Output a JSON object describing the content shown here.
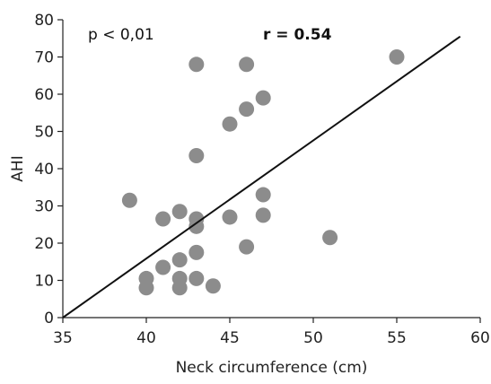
{
  "chart_data": {
    "type": "scatter",
    "xlabel": "Neck circumference (cm)",
    "ylabel": "AHI",
    "xlim": [
      35,
      60
    ],
    "ylim": [
      0,
      80
    ],
    "x_ticks": [
      35,
      40,
      45,
      50,
      55,
      60
    ],
    "y_ticks": [
      0,
      10,
      20,
      30,
      40,
      50,
      60,
      70,
      80
    ],
    "grid": false,
    "annotations": [
      {
        "text": "p < 0,01"
      },
      {
        "text": "r = 0.54"
      }
    ],
    "point_color": "#8c8c8c",
    "trend_color": "#111111",
    "trendline": {
      "x": [
        35,
        58.8
      ],
      "y": [
        0,
        75.5
      ]
    },
    "points": [
      {
        "x": 39,
        "y": 31.5
      },
      {
        "x": 40,
        "y": 10.5
      },
      {
        "x": 40,
        "y": 8
      },
      {
        "x": 41,
        "y": 13.5
      },
      {
        "x": 41,
        "y": 26.5
      },
      {
        "x": 42,
        "y": 28.5
      },
      {
        "x": 42,
        "y": 15.5
      },
      {
        "x": 42,
        "y": 10.5
      },
      {
        "x": 42,
        "y": 8
      },
      {
        "x": 43,
        "y": 68
      },
      {
        "x": 43,
        "y": 43.5
      },
      {
        "x": 43,
        "y": 26.5
      },
      {
        "x": 43,
        "y": 24.5
      },
      {
        "x": 43,
        "y": 17.5
      },
      {
        "x": 43,
        "y": 10.5
      },
      {
        "x": 44,
        "y": 8.5
      },
      {
        "x": 45,
        "y": 52
      },
      {
        "x": 45,
        "y": 27
      },
      {
        "x": 46,
        "y": 68
      },
      {
        "x": 46,
        "y": 56
      },
      {
        "x": 46,
        "y": 19
      },
      {
        "x": 47,
        "y": 59
      },
      {
        "x": 47,
        "y": 33
      },
      {
        "x": 47,
        "y": 27.5
      },
      {
        "x": 51,
        "y": 21.5
      },
      {
        "x": 55,
        "y": 70
      }
    ]
  }
}
